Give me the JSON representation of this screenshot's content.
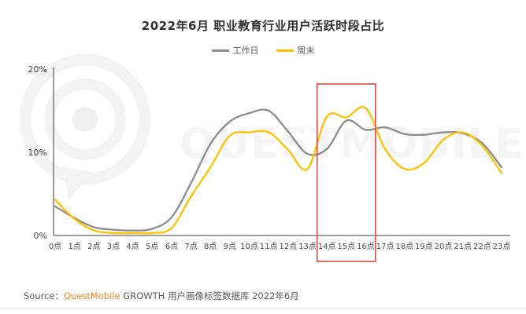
{
  "title": "2022年6月 职业教育行业用户活跃时段占比",
  "watermark": {
    "text": "QUESTMOBILE"
  },
  "chart_data": {
    "type": "line",
    "title": "2022年6月 职业教育行业用户活跃时段占比",
    "x": [
      "0点",
      "1点",
      "2点",
      "3点",
      "4点",
      "5点",
      "6点",
      "7点",
      "8点",
      "9点",
      "10点",
      "11点",
      "12点",
      "13点",
      "14点",
      "15点",
      "16点",
      "17点",
      "18点",
      "19点",
      "20点",
      "21点",
      "22点",
      "23点"
    ],
    "unit": "%",
    "ylim": [
      0,
      20
    ],
    "yticks": [
      {
        "label": "20%",
        "value": 20
      },
      {
        "label": "10%",
        "value": 10
      },
      {
        "label": "0%",
        "value": 0
      }
    ],
    "grid": false,
    "legend_position": "top",
    "series": [
      {
        "id": "workday",
        "name": "工作日",
        "color": "#8C8C8C",
        "values": [
          3.5,
          2.1,
          1.0,
          0.7,
          0.6,
          0.8,
          2.2,
          6.3,
          11.0,
          13.7,
          14.7,
          15.0,
          12.5,
          9.8,
          10.4,
          13.8,
          12.7,
          13.0,
          12.2,
          12.1,
          12.4,
          12.3,
          11.1,
          8.2
        ]
      },
      {
        "id": "weekend",
        "name": "周末",
        "color": "#FFC000",
        "values": [
          4.3,
          2.0,
          0.6,
          0.3,
          0.3,
          0.3,
          0.9,
          4.7,
          8.2,
          12.0,
          12.4,
          12.4,
          10.3,
          8.0,
          14.3,
          14.2,
          15.3,
          10.4,
          8.0,
          8.7,
          11.5,
          12.4,
          10.8,
          7.5
        ]
      }
    ],
    "highlight_range": {
      "from": "14点",
      "to": "16点",
      "color": "#DF4A45"
    }
  },
  "source": {
    "prefix": "Source：",
    "brand": "QuestMobile",
    "brand_color": "#F6821F",
    "rest": " GROWTH 用户画像标签数据库 2022年6月"
  }
}
